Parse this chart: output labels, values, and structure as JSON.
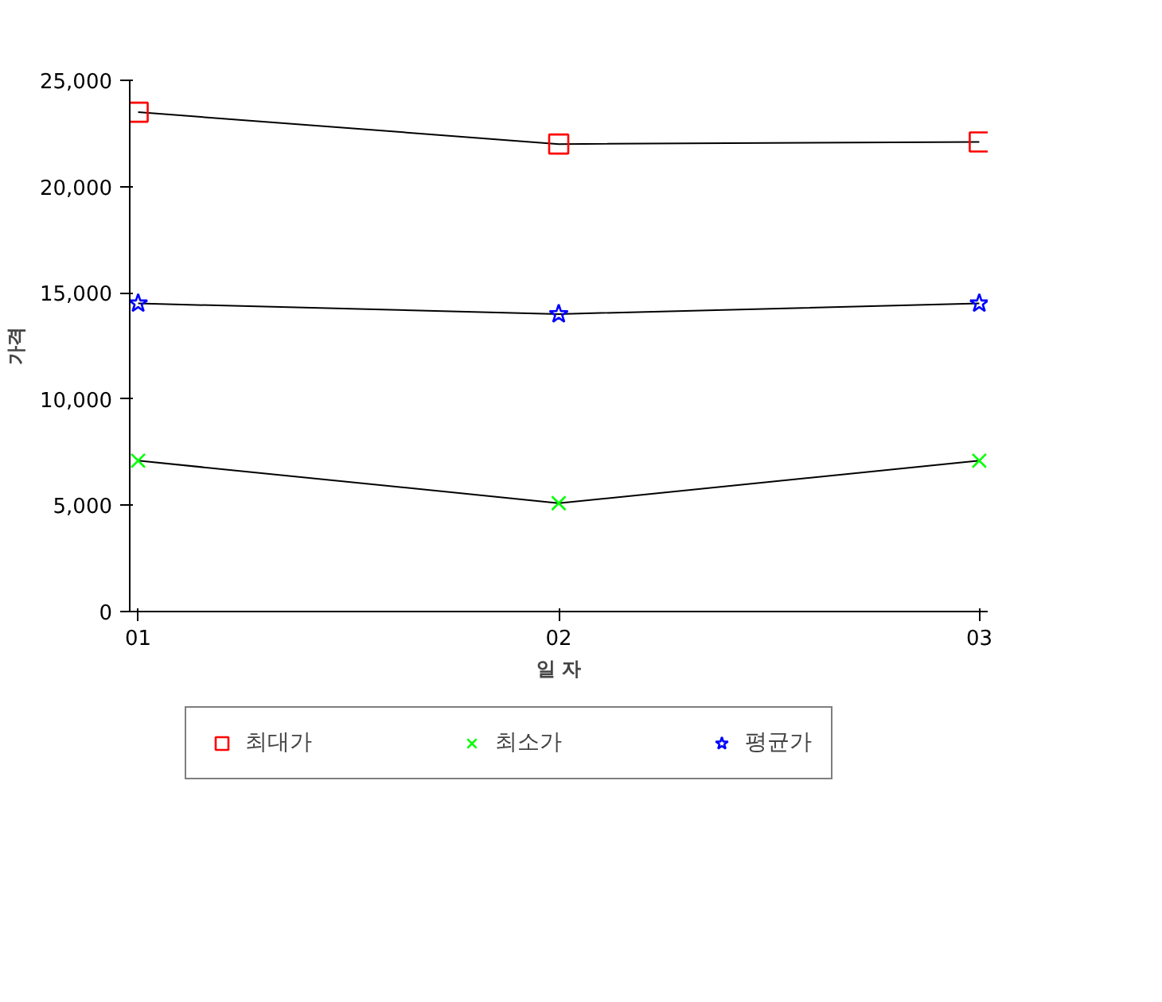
{
  "chart_data": {
    "type": "line",
    "xlabel": "일 자",
    "ylabel": "가격",
    "categories": [
      "01",
      "02",
      "03"
    ],
    "series": [
      {
        "name": "최대가",
        "color": "#ff0000",
        "marker": "square",
        "values": [
          23500,
          22000,
          22100
        ]
      },
      {
        "name": "최소가",
        "color": "#00ff00",
        "marker": "cross",
        "values": [
          7100,
          5100,
          7100
        ]
      },
      {
        "name": "평균가",
        "color": "#0000ff",
        "marker": "star",
        "values": [
          14500,
          14000,
          14500
        ]
      }
    ],
    "ylim": [
      0,
      25000
    ],
    "yticks": [
      {
        "value": 0,
        "label": "0"
      },
      {
        "value": 5000,
        "label": "5,000"
      },
      {
        "value": 10000,
        "label": "10,000"
      },
      {
        "value": 15000,
        "label": "15,000"
      },
      {
        "value": 20000,
        "label": "20,000"
      },
      {
        "value": 25000,
        "label": "25,000"
      }
    ],
    "grid": false,
    "legend": "bottom",
    "line_style": "solid"
  }
}
